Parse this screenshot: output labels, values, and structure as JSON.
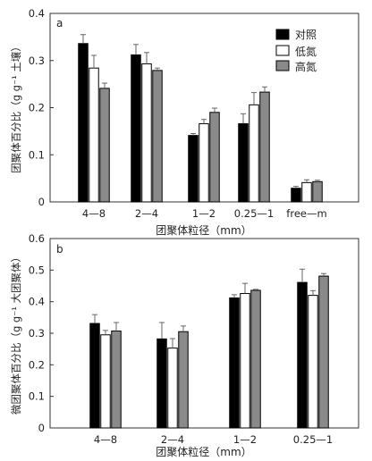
{
  "chart_data": [
    {
      "panel_label": "a",
      "type": "bar",
      "categories": [
        "4—8",
        "2—4",
        "1—2",
        "0.25—1",
        "free—m"
      ],
      "series": [
        {
          "name": "对照",
          "color": "#000000",
          "values": [
            0.336,
            0.312,
            0.141,
            0.166,
            0.029
          ],
          "errors": [
            0.019,
            0.022,
            0.004,
            0.021,
            0.004
          ]
        },
        {
          "name": "低氮",
          "color": "#ffffff",
          "values": [
            0.284,
            0.293,
            0.166,
            0.206,
            0.041
          ],
          "errors": [
            0.027,
            0.024,
            0.009,
            0.026,
            0.006
          ]
        },
        {
          "name": "高氮",
          "color": "#8a8a8a",
          "values": [
            0.241,
            0.279,
            0.19,
            0.233,
            0.043
          ],
          "errors": [
            0.011,
            0.005,
            0.009,
            0.011,
            0.003
          ]
        }
      ],
      "xlabel": "团聚体粒径（mm）",
      "ylabel": "团聚体百分比（g g⁻¹ 土壤）",
      "ylim": [
        0,
        0.4
      ],
      "yticks": [
        "0",
        "0.1",
        "0.2",
        "0.3",
        "0.4"
      ],
      "legend": "top-right",
      "grid": false
    },
    {
      "panel_label": "b",
      "type": "bar",
      "categories": [
        "4—8",
        "2—4",
        "1—2",
        "0.25—1"
      ],
      "series": [
        {
          "name": "对照",
          "color": "#000000",
          "values": [
            0.331,
            0.282,
            0.412,
            0.461
          ],
          "errors": [
            0.028,
            0.052,
            0.01,
            0.042
          ]
        },
        {
          "name": "低氮",
          "color": "#ffffff",
          "values": [
            0.295,
            0.253,
            0.426,
            0.42
          ],
          "errors": [
            0.014,
            0.03,
            0.032,
            0.015
          ]
        },
        {
          "name": "高氮",
          "color": "#8a8a8a",
          "values": [
            0.307,
            0.305,
            0.436,
            0.481
          ],
          "errors": [
            0.027,
            0.018,
            0.003,
            0.008
          ]
        }
      ],
      "xlabel": "团聚体粒径（mm）",
      "ylabel": "微团聚体百分比（g g⁻¹ 大团聚体）",
      "ylim": [
        0,
        0.6
      ],
      "yticks": [
        "0",
        "0.1",
        "0.2",
        "0.3",
        "0.4",
        "0.5",
        "0.6"
      ],
      "grid": false
    }
  ]
}
